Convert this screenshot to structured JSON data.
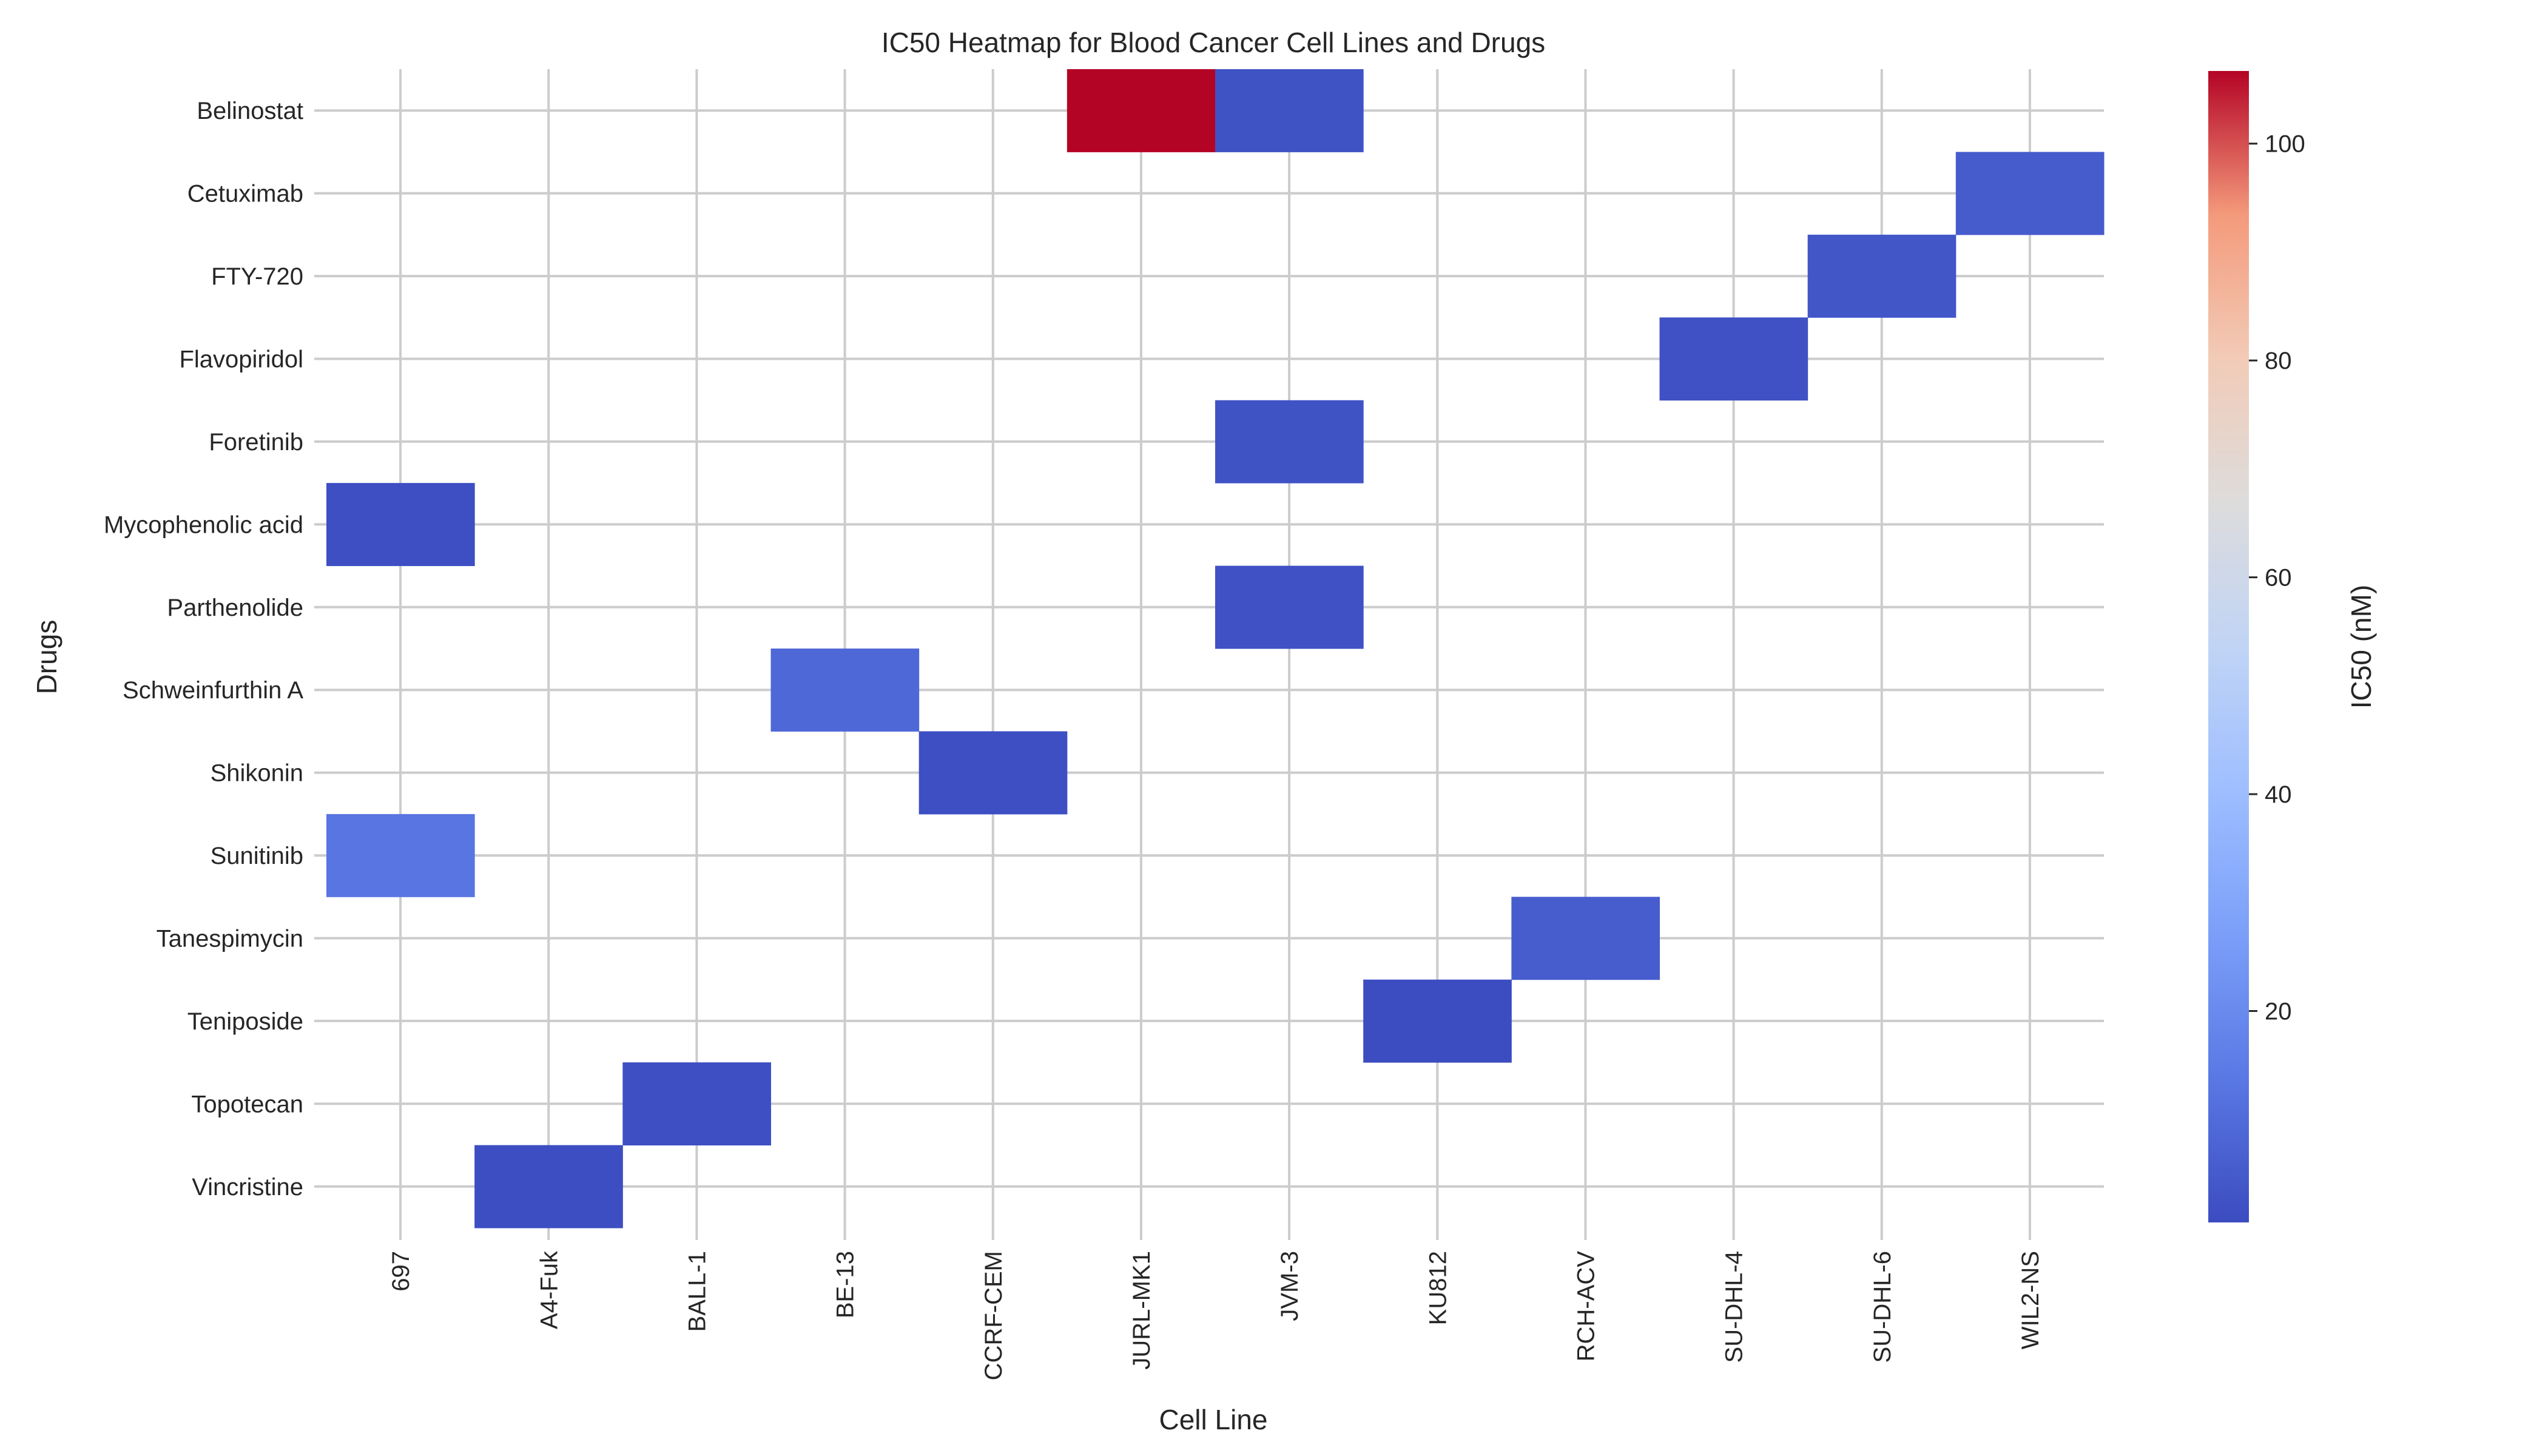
{
  "chart_data": {
    "type": "heatmap",
    "title": "IC50 Heatmap for Blood Cancer Cell Lines and Drugs",
    "xlabel": "Cell Line",
    "ylabel": "Drugs",
    "colorbar_label": "IC50 (nM)",
    "colormap": "coolwarm",
    "grid": true,
    "color_range": [
      0.5,
      106.7
    ],
    "colorbar_ticks": [
      20,
      40,
      60,
      80,
      100
    ],
    "colorbar_tick_labels": [
      "20",
      "40",
      "60",
      "80",
      "100"
    ],
    "x_categories": [
      "697",
      "A4-Fuk",
      "BALL-1",
      "BE-13",
      "CCRF-CEM",
      "JURL-MK1",
      "JVM-3",
      "KU812",
      "RCH-ACV",
      "SU-DHL-4",
      "SU-DHL-6",
      "WIL2-NS"
    ],
    "y_categories": [
      "Belinostat",
      "Cetuximab",
      "FTY-720",
      "Flavopiridol",
      "Foretinib",
      "Mycophenolic acid",
      "Parthenolide",
      "Schweinfurthin A",
      "Shikonin",
      "Sunitinib",
      "Tanespimycin",
      "Teniposide",
      "Topotecan",
      "Vincristine"
    ],
    "cells": [
      {
        "drug": "Belinostat",
        "cell_line": "JURL-MK1",
        "value": 106.7
      },
      {
        "drug": "Belinostat",
        "cell_line": "JVM-3",
        "value": 2.5
      },
      {
        "drug": "Cetuximab",
        "cell_line": "WIL2-NS",
        "value": 5.0
      },
      {
        "drug": "FTY-720",
        "cell_line": "SU-DHL-6",
        "value": 3.5
      },
      {
        "drug": "Flavopiridol",
        "cell_line": "SU-DHL-4",
        "value": 2.0
      },
      {
        "drug": "Foretinib",
        "cell_line": "JVM-3",
        "value": 2.5
      },
      {
        "drug": "Mycophenolic acid",
        "cell_line": "697",
        "value": 1.5
      },
      {
        "drug": "Parthenolide",
        "cell_line": "JVM-3",
        "value": 2.0
      },
      {
        "drug": "Schweinfurthin A",
        "cell_line": "BE-13",
        "value": 9.0
      },
      {
        "drug": "Shikonin",
        "cell_line": "CCRF-CEM",
        "value": 1.5
      },
      {
        "drug": "Sunitinib",
        "cell_line": "697",
        "value": 13.0
      },
      {
        "drug": "Tanespimycin",
        "cell_line": "RCH-ACV",
        "value": 5.5
      },
      {
        "drug": "Teniposide",
        "cell_line": "KU812",
        "value": 0.8
      },
      {
        "drug": "Topotecan",
        "cell_line": "BALL-1",
        "value": 1.5
      },
      {
        "drug": "Vincristine",
        "cell_line": "A4-Fuk",
        "value": 1.0
      }
    ]
  }
}
